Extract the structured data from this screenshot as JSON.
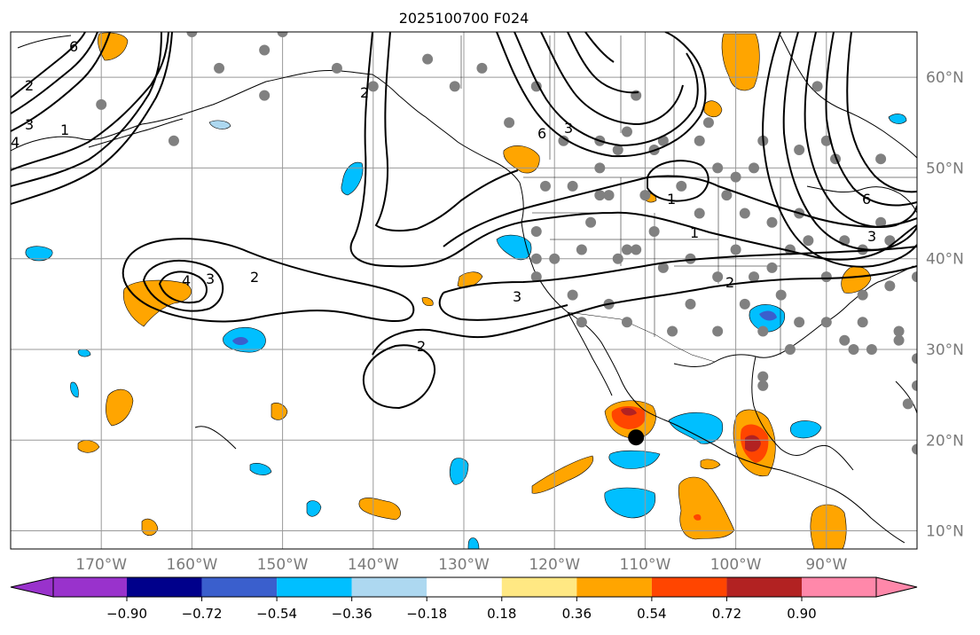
{
  "title": "2025100700 F024",
  "map": {
    "lon_range": [
      -180,
      -80
    ],
    "lat_range": [
      8,
      65
    ],
    "lon_ticks": [
      {
        "value": -170,
        "label": "170°W"
      },
      {
        "value": -160,
        "label": "160°W"
      },
      {
        "value": -150,
        "label": "150°W"
      },
      {
        "value": -140,
        "label": "140°W"
      },
      {
        "value": -130,
        "label": "130°W"
      },
      {
        "value": -120,
        "label": "120°W"
      },
      {
        "value": -110,
        "label": "110°W"
      },
      {
        "value": -100,
        "label": "100°W"
      },
      {
        "value": -90,
        "label": "90°W"
      }
    ],
    "lat_ticks": [
      {
        "value": 10,
        "label": "10°N"
      },
      {
        "value": 20,
        "label": "20°N"
      },
      {
        "value": 30,
        "label": "30°N"
      },
      {
        "value": 40,
        "label": "40°N"
      },
      {
        "value": 50,
        "label": "50°N"
      },
      {
        "value": 60,
        "label": "60°N"
      }
    ],
    "grid": true,
    "marker": {
      "lon": -111.0,
      "lat": 20.3
    },
    "stations": [
      [
        -170,
        57
      ],
      [
        -160,
        65
      ],
      [
        -157,
        61
      ],
      [
        -150,
        65
      ],
      [
        -152,
        58
      ],
      [
        -162,
        53
      ],
      [
        -144,
        61
      ],
      [
        -140,
        59
      ],
      [
        -131,
        59
      ],
      [
        -128,
        61
      ],
      [
        -122,
        59
      ],
      [
        -121,
        48
      ],
      [
        -115,
        53
      ],
      [
        -115,
        50
      ],
      [
        -113,
        52
      ],
      [
        -112,
        54
      ],
      [
        -111,
        58
      ],
      [
        -114,
        47
      ],
      [
        -109,
        52
      ],
      [
        -108,
        53
      ],
      [
        -106,
        48
      ],
      [
        -104,
        53
      ],
      [
        -103,
        55
      ],
      [
        -102,
        50
      ],
      [
        -100,
        49
      ],
      [
        -98,
        50
      ],
      [
        -97,
        53
      ],
      [
        -93,
        52
      ],
      [
        -91,
        59
      ],
      [
        -90,
        53
      ],
      [
        -89,
        51
      ],
      [
        -84,
        51
      ],
      [
        -122,
        43
      ],
      [
        -118,
        48
      ],
      [
        -116,
        44
      ],
      [
        -112,
        41
      ],
      [
        -115,
        47
      ],
      [
        -109,
        43
      ],
      [
        -110,
        47
      ],
      [
        -104,
        45
      ],
      [
        -101,
        47
      ],
      [
        -99,
        45
      ],
      [
        -96,
        44
      ],
      [
        -93,
        45
      ],
      [
        -92,
        42
      ],
      [
        -88,
        42
      ],
      [
        -86,
        41
      ],
      [
        -84,
        44
      ],
      [
        -83,
        42
      ],
      [
        -122,
        40
      ],
      [
        -120,
        40
      ],
      [
        -117,
        41
      ],
      [
        -113,
        40
      ],
      [
        -111,
        41
      ],
      [
        -108,
        39
      ],
      [
        -105,
        40
      ],
      [
        -102,
        38
      ],
      [
        -100,
        41
      ],
      [
        -98,
        38
      ],
      [
        -96,
        39
      ],
      [
        -94,
        41
      ],
      [
        -90,
        38
      ],
      [
        -86,
        36
      ],
      [
        -83,
        37
      ],
      [
        -80,
        38
      ],
      [
        -86,
        33
      ],
      [
        -82,
        32
      ],
      [
        -80,
        29
      ],
      [
        -122,
        38
      ],
      [
        -118,
        36
      ],
      [
        -117,
        33
      ],
      [
        -114,
        35
      ],
      [
        -112,
        33
      ],
      [
        -107,
        32
      ],
      [
        -105,
        35
      ],
      [
        -102,
        32
      ],
      [
        -99,
        35
      ],
      [
        -97,
        32
      ],
      [
        -95,
        36
      ],
      [
        -93,
        33
      ],
      [
        -90,
        33
      ],
      [
        -88,
        31
      ],
      [
        -85,
        30
      ],
      [
        -82,
        31
      ],
      [
        -80,
        26
      ],
      [
        -81,
        24
      ],
      [
        -87,
        30
      ],
      [
        -94,
        30
      ],
      [
        -97,
        27
      ],
      [
        -97,
        26
      ],
      [
        -80,
        19
      ],
      [
        -134,
        62
      ],
      [
        -125,
        55
      ],
      [
        -119,
        53
      ],
      [
        -152,
        63
      ]
    ]
  },
  "contours": [
    {
      "value": 4,
      "label": "4"
    },
    {
      "value": 3,
      "label": "3"
    },
    {
      "value": 2,
      "label": "2"
    },
    {
      "value": 1,
      "label": "1"
    },
    {
      "value": 6,
      "label": "6"
    }
  ],
  "colorbar": {
    "colors": [
      "#9932cc",
      "#00008b",
      "#3a5fcd",
      "#00bfff",
      "#add8f0",
      "#ffffff",
      "#ffe883",
      "#ffa500",
      "#ff4500",
      "#b22222",
      "#ff88aa"
    ],
    "tick_labels": [
      "−0.90",
      "−0.72",
      "−0.54",
      "−0.36",
      "−0.18",
      "0.18",
      "0.36",
      "0.54",
      "0.72",
      "0.90"
    ]
  }
}
